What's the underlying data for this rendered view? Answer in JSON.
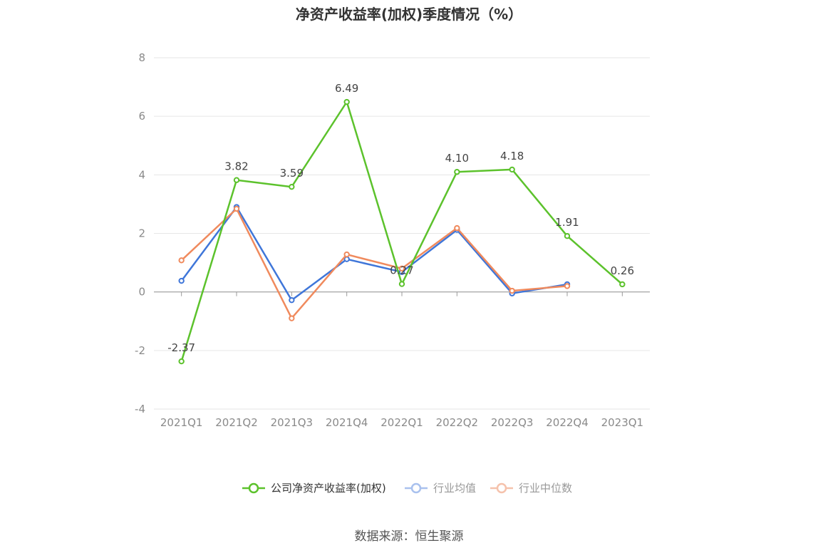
{
  "title": "净资产收益率(加权)季度情况（%）",
  "source": "数据来源：恒生聚源",
  "colors": {
    "company": "#5cc22c",
    "avg": "#3f76d9",
    "median": "#f08a5d",
    "grid": "#e6e6e6",
    "axis": "#999999"
  },
  "chart_data": {
    "type": "line",
    "title": "净资产收益率(加权)季度情况（%）",
    "categories": [
      "2021Q1",
      "2021Q2",
      "2021Q3",
      "2021Q4",
      "2022Q1",
      "2022Q2",
      "2022Q3",
      "2022Q4",
      "2023Q1"
    ],
    "ylim": [
      -4,
      8
    ],
    "yticks": [
      -4,
      -2,
      0,
      2,
      4,
      6,
      8
    ],
    "grid": true,
    "legend_position": "bottom",
    "series": [
      {
        "name": "公司净资产收益率(加权)",
        "key": "company",
        "values": [
          -2.37,
          3.82,
          3.59,
          6.49,
          0.27,
          4.1,
          4.18,
          1.91,
          0.26
        ],
        "labels": [
          "-2.37",
          "3.82",
          "3.59",
          "6.49",
          "0.27",
          "4.10",
          "4.18",
          "1.91",
          "0.26"
        ]
      },
      {
        "name": "行业均值",
        "key": "avg",
        "values": [
          0.38,
          2.9,
          -0.28,
          1.12,
          0.68,
          2.12,
          -0.05,
          0.26,
          null
        ]
      },
      {
        "name": "行业中位数",
        "key": "median",
        "values": [
          1.08,
          2.84,
          -0.9,
          1.28,
          0.8,
          2.18,
          0.04,
          0.2,
          null
        ]
      }
    ]
  }
}
